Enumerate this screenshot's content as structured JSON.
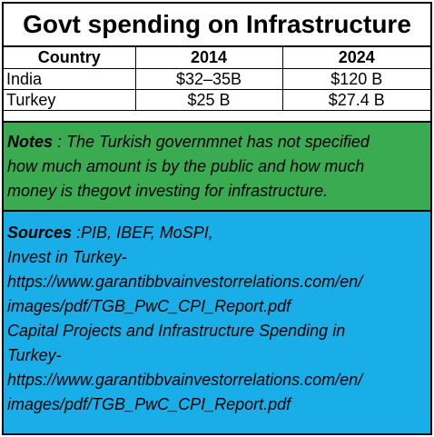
{
  "title": "Govt spending on Infrastructure",
  "table": {
    "headers": [
      "Country",
      "2014",
      "2024"
    ],
    "rows": [
      {
        "country": "India",
        "y2014": "$32–35B",
        "y2024": "$120 B"
      },
      {
        "country": "Turkey",
        "y2014": "$25 B",
        "y2024": "$27.4 B"
      }
    ]
  },
  "notes": {
    "label": "Notes",
    "lines": [
      " : The Turkish governmnet has not specified",
      "how much amount is by the public and how much",
      "money is thegovt investing for infrastructure."
    ]
  },
  "sources": {
    "label": "Sources",
    "first_line_rest": " :PIB, IBEF, MoSPI,",
    "lines": [
      "Invest in Turkey-",
      "https://www.garantibbvainvestorrelations.com/en/",
      "images/pdf/TGB_PwC_CPI_Report.pdf",
      "Capital Projects and Infrastructure Spending in",
      "Turkey-",
      "https://www.garantibbvainvestorrelations.com/en/",
      "images/pdf/TGB_PwC_CPI_Report.pdf"
    ]
  }
}
